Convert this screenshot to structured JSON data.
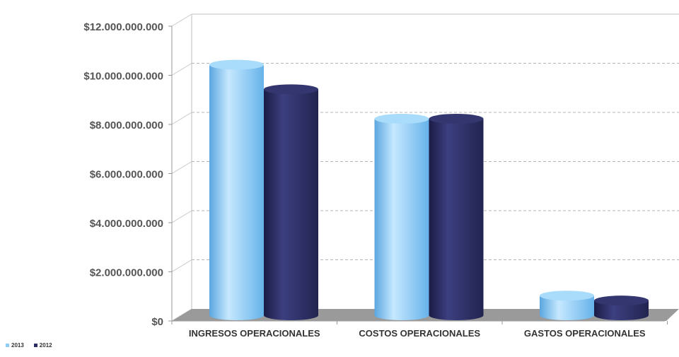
{
  "chart_data": {
    "type": "bar",
    "style": "3d-cylinder",
    "categories": [
      "INGRESOS OPERACIONALES",
      "COSTOS OPERACIONALES",
      "GASTOS OPERACIONALES"
    ],
    "series": [
      {
        "name": "2013",
        "values": [
          10300000000,
          8100000000,
          900000000
        ],
        "color": "#8ccdf7"
      },
      {
        "name": "2012",
        "values": [
          9300000000,
          8100000000,
          700000000
        ],
        "color": "#2b2d63"
      }
    ],
    "yticks": [
      "$0",
      "$2.000.000.000",
      "$4.000.000.000",
      "$6.000.000.000",
      "$8.000.000.000",
      "$10.000.000.000",
      "$12.000.000.000"
    ],
    "ylim": [
      0,
      12000000000
    ],
    "grid": true,
    "legend_position": "bottom-left",
    "floor_color": "#9a9a9a"
  }
}
